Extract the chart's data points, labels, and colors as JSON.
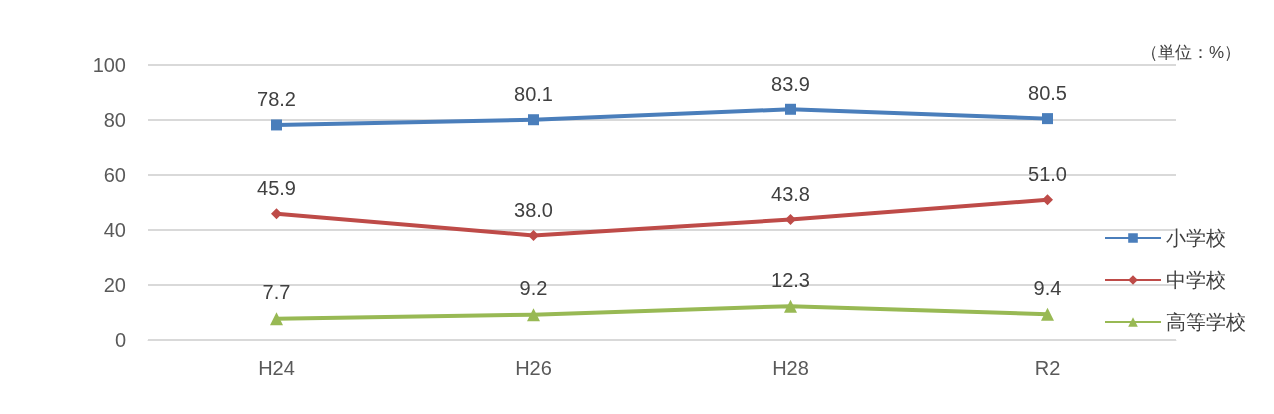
{
  "chart_data": {
    "type": "line",
    "categories": [
      "H24",
      "H26",
      "H28",
      "R2"
    ],
    "series": [
      {
        "name": "小学校",
        "color": "#4a7ebb",
        "marker": "square",
        "values": [
          78.2,
          80.1,
          83.9,
          80.5
        ],
        "value_labels": [
          "78.2",
          "80.1",
          "83.9",
          "80.5"
        ]
      },
      {
        "name": "中学校",
        "color": "#be4b48",
        "marker": "diamond",
        "values": [
          45.9,
          38.0,
          43.8,
          51.0
        ],
        "value_labels": [
          "45.9",
          "38.0",
          "43.8",
          "51.0"
        ]
      },
      {
        "name": "高等学校",
        "color": "#98b954",
        "marker": "triangle",
        "values": [
          7.7,
          9.2,
          12.3,
          9.4
        ],
        "value_labels": [
          "7.7",
          "9.2",
          "12.3",
          "9.4"
        ]
      }
    ],
    "ylim": [
      0,
      100
    ],
    "yticks": [
      0,
      20,
      40,
      60,
      80,
      100
    ],
    "grid": "y",
    "legend": "right",
    "annotations": [
      "（単位：%）"
    ]
  }
}
